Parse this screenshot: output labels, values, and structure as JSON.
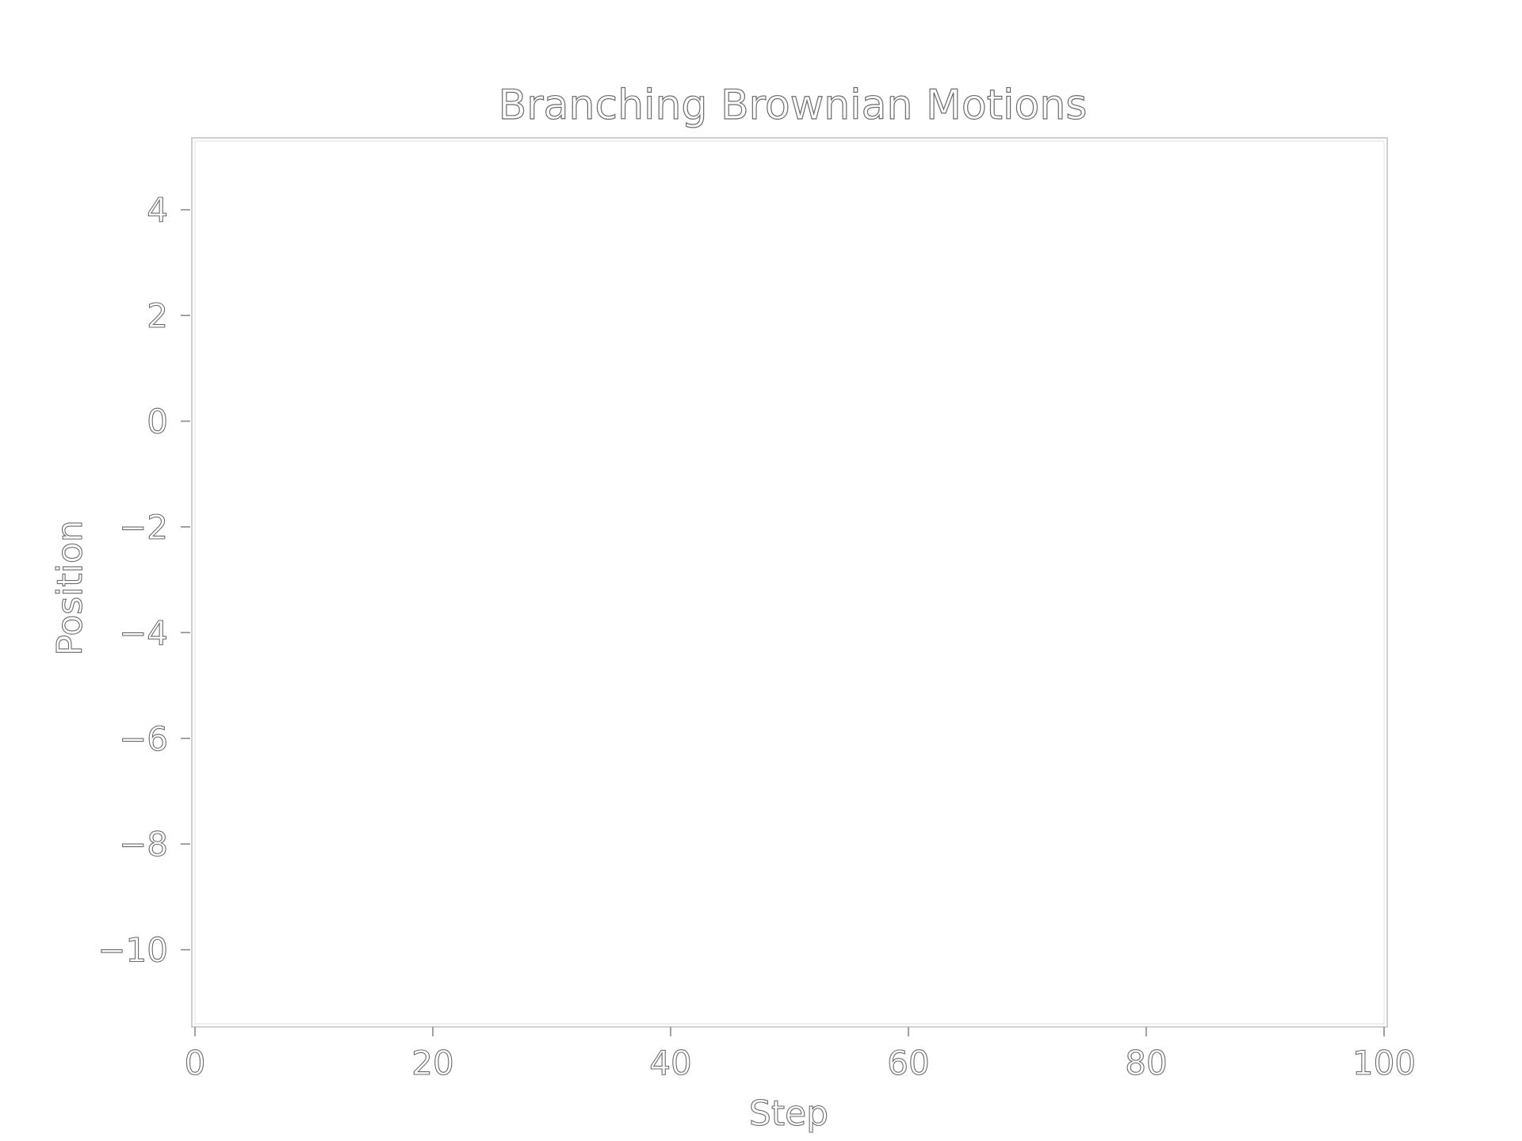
{
  "chart_data": {
    "type": "line",
    "title": "Branching Brownian Motions",
    "xlabel": "Step",
    "ylabel": "Position",
    "xlim": [
      0,
      100
    ],
    "ylim": [
      -11.4,
      5.3
    ],
    "x_ticks": [
      0,
      20,
      40,
      60,
      80,
      100
    ],
    "x_tick_labels": [
      "0",
      "20",
      "40",
      "60",
      "80",
      "100"
    ],
    "y_ticks": [
      4,
      2,
      0,
      -2,
      -4,
      -6,
      -8,
      -10
    ],
    "y_tick_labels": [
      "4",
      "2",
      "0",
      "−2",
      "−4",
      "−6",
      "−8",
      "−10"
    ],
    "series": [],
    "grid": false,
    "legend": false
  }
}
